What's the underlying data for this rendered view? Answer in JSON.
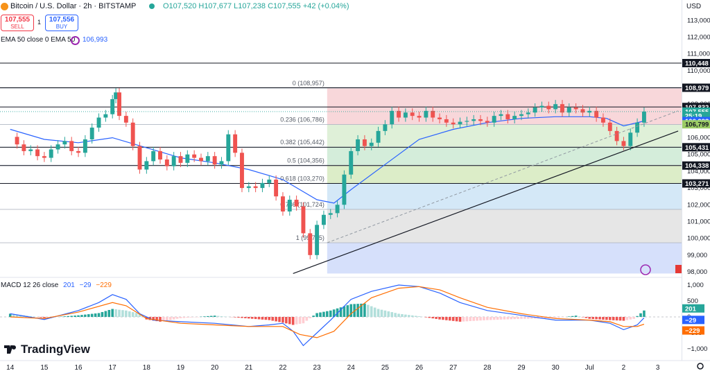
{
  "header": {
    "title": "Bitcoin / U.S. Dollar · 2h · BITSTAMP",
    "ohlc": "O107,520 H107,677 L107,238 C107,555 +42 (+0.04%)",
    "sell_price": "107,555",
    "sell_label": "SELL",
    "spread": "1",
    "buy_price": "107,556",
    "buy_label": "BUY",
    "ema_legend": "EMA 50 close 0 EMA 50",
    "ema_value": "106,993",
    "currency": "USD"
  },
  "macd_legend": {
    "label": "MACD 12 26 close",
    "v1": "201",
    "v2": "−29",
    "v3": "−229"
  },
  "colors": {
    "up": "#26a69a",
    "down": "#ef5350",
    "ema": "#2962ff",
    "macd_line": "#2962ff",
    "signal_line": "#ff6d00"
  },
  "price_axis": {
    "ticks": [
      "113,000",
      "112,000",
      "111,000",
      "110,000",
      "109,000",
      "108,000",
      "107,000",
      "106,000",
      "105,000",
      "104,000",
      "103,000",
      "102,000",
      "101,000",
      "100,000",
      "99,000",
      "98,000"
    ],
    "tick_values": [
      113000,
      112000,
      111000,
      110000,
      109000,
      108000,
      107000,
      106000,
      105000,
      104000,
      103000,
      102000,
      101000,
      100000,
      99000,
      98000
    ],
    "badges": [
      {
        "text": "110,448",
        "value": 110448,
        "bg": "#131722",
        "fg": "#ffffff"
      },
      {
        "text": "108,979",
        "value": 108979,
        "bg": "#131722",
        "fg": "#ffffff"
      },
      {
        "text": "107,832",
        "value": 107832,
        "bg": "#131722",
        "fg": "#ffffff"
      },
      {
        "text": "107,555",
        "value": 107555,
        "bg": "#26a69a",
        "fg": "#ffffff"
      },
      {
        "text": "25:19",
        "value": 107300,
        "bg": "#26a69a",
        "fg": "#ffffff"
      },
      {
        "text": "106,993",
        "value": 106993,
        "bg": "#2962ff",
        "fg": "#ffffff"
      },
      {
        "text": "106,799",
        "value": 106799,
        "bg": "#9ccc65",
        "fg": "#131722"
      },
      {
        "text": "105,431",
        "value": 105431,
        "bg": "#131722",
        "fg": "#ffffff"
      },
      {
        "text": "104,338",
        "value": 104338,
        "bg": "#131722",
        "fg": "#ffffff"
      },
      {
        "text": "103,271",
        "value": 103271,
        "bg": "#131722",
        "fg": "#ffffff"
      }
    ]
  },
  "macd_axis": {
    "ticks": [
      "1,000",
      "500",
      "0",
      "−500",
      "−1,000"
    ],
    "tick_values": [
      1000,
      500,
      0,
      -500,
      -1000
    ],
    "badges": [
      {
        "text": "201",
        "value": 201,
        "bg": "#26a69a",
        "fg": "#ffffff"
      },
      {
        "text": "−29",
        "value": -29,
        "bg": "#2962ff",
        "fg": "#ffffff"
      },
      {
        "text": "−229",
        "value": -229,
        "bg": "#ff6d00",
        "fg": "#ffffff"
      }
    ]
  },
  "time_axis": {
    "labels": [
      "14",
      "15",
      "16",
      "17",
      "18",
      "19",
      "20",
      "21",
      "22",
      "23",
      "24",
      "25",
      "26",
      "27",
      "28",
      "29",
      "30",
      "Jul",
      "2",
      "3"
    ],
    "label_positions": [
      0,
      1,
      2,
      3,
      4,
      5,
      6,
      7,
      8,
      9,
      10,
      11,
      12,
      13,
      14,
      15,
      16,
      17,
      18,
      19
    ]
  },
  "chart_data": {
    "type": "candlestick",
    "title": "Bitcoin / U.S. Dollar · 2h · BITSTAMP",
    "x_unit": "days (0 = Jun 14)",
    "horizontal_levels": [
      110448,
      108979,
      107832,
      105431,
      104338,
      103271
    ],
    "fibonacci": {
      "start_x": 9.3,
      "levels": [
        {
          "ratio": "0",
          "price": 108957,
          "label": "0 (108,957)",
          "fill": "#f8d7da"
        },
        {
          "ratio": "0.236",
          "price": 106786,
          "label": "0.236 (106,786)",
          "fill": "#dff0d8"
        },
        {
          "ratio": "0.382",
          "price": 105442,
          "label": "0.382 (105,442)",
          "fill": "#d4edda"
        },
        {
          "ratio": "0.5",
          "price": 104356,
          "label": "0.5 (104,356)",
          "fill": "#dcedc8"
        },
        {
          "ratio": "0.618",
          "price": 103270,
          "label": "0.618 (103,270)",
          "fill": "#d4e8f7"
        },
        {
          "ratio": "0.786",
          "price": 101724,
          "label": "0.786 (101,724)",
          "fill": "#e6e6e6"
        },
        {
          "ratio": "1",
          "price": 99735,
          "label": "1 (99,735)",
          "fill": "#d6e0fb"
        }
      ],
      "bottom_price": 97900
    },
    "trendline": {
      "x1": 8.3,
      "y1": 97900,
      "x2": 19.6,
      "y2": 106400
    },
    "dashed_trendline": {
      "x1": 9.3,
      "y1": 99735,
      "x2": 19.6,
      "y2": 107600
    },
    "close_points": [
      [
        0,
        106050
      ],
      [
        0.2,
        105600
      ],
      [
        0.4,
        105200
      ],
      [
        0.6,
        105300
      ],
      [
        0.8,
        104900
      ],
      [
        1,
        104800
      ],
      [
        1.2,
        105300
      ],
      [
        1.4,
        105600
      ],
      [
        1.6,
        105800
      ],
      [
        1.8,
        105200
      ],
      [
        2,
        105100
      ],
      [
        2.2,
        105900
      ],
      [
        2.4,
        106600
      ],
      [
        2.6,
        107200
      ],
      [
        2.8,
        107400
      ],
      [
        3,
        108300
      ],
      [
        3.1,
        108700
      ],
      [
        3.2,
        107300
      ],
      [
        3.4,
        106900
      ],
      [
        3.6,
        105500
      ],
      [
        3.8,
        104100
      ],
      [
        4,
        104600
      ],
      [
        4.2,
        105200
      ],
      [
        4.4,
        104700
      ],
      [
        4.6,
        104300
      ],
      [
        4.8,
        104900
      ],
      [
        5,
        104500
      ],
      [
        5.2,
        105000
      ],
      [
        5.4,
        104800
      ],
      [
        5.6,
        104600
      ],
      [
        5.8,
        104900
      ],
      [
        6,
        104400
      ],
      [
        6.2,
        104600
      ],
      [
        6.4,
        106200
      ],
      [
        6.6,
        105100
      ],
      [
        6.8,
        103000
      ],
      [
        7,
        103100
      ],
      [
        7.2,
        103000
      ],
      [
        7.4,
        103300
      ],
      [
        7.6,
        103500
      ],
      [
        7.8,
        102500
      ],
      [
        8,
        101600
      ],
      [
        8.2,
        102300
      ],
      [
        8.4,
        101900
      ],
      [
        8.6,
        100300
      ],
      [
        8.8,
        99000
      ],
      [
        9,
        100800
      ],
      [
        9.2,
        101400
      ],
      [
        9.4,
        101500
      ],
      [
        9.6,
        102000
      ],
      [
        9.8,
        103800
      ],
      [
        10,
        105200
      ],
      [
        10.2,
        105900
      ],
      [
        10.4,
        105500
      ],
      [
        10.6,
        105700
      ],
      [
        10.8,
        106400
      ],
      [
        11,
        106800
      ],
      [
        11.2,
        107600
      ],
      [
        11.4,
        107200
      ],
      [
        11.6,
        107500
      ],
      [
        11.8,
        107300
      ],
      [
        12,
        107200
      ],
      [
        12.2,
        107600
      ],
      [
        12.4,
        107200
      ],
      [
        12.6,
        107100
      ],
      [
        12.8,
        106900
      ],
      [
        13,
        106800
      ],
      [
        13.2,
        106950
      ],
      [
        13.4,
        107000
      ],
      [
        13.6,
        107100
      ],
      [
        13.8,
        107000
      ],
      [
        14,
        106900
      ],
      [
        14.2,
        107300
      ],
      [
        14.4,
        107400
      ],
      [
        14.6,
        107100
      ],
      [
        14.8,
        107300
      ],
      [
        15,
        107400
      ],
      [
        15.2,
        107500
      ],
      [
        15.4,
        107800
      ],
      [
        15.6,
        107900
      ],
      [
        15.8,
        107700
      ],
      [
        16,
        108000
      ],
      [
        16.2,
        107500
      ],
      [
        16.4,
        107800
      ],
      [
        16.6,
        107700
      ],
      [
        16.8,
        107500
      ],
      [
        17,
        107600
      ],
      [
        17.2,
        107200
      ],
      [
        17.4,
        106900
      ],
      [
        17.6,
        106400
      ],
      [
        17.8,
        105800
      ],
      [
        18,
        105500
      ],
      [
        18.2,
        106300
      ],
      [
        18.4,
        106900
      ],
      [
        18.6,
        107555
      ]
    ],
    "ema50": [
      [
        0,
        106500
      ],
      [
        1,
        105900
      ],
      [
        2,
        105700
      ],
      [
        3,
        106000
      ],
      [
        4,
        105400
      ],
      [
        5,
        104800
      ],
      [
        6,
        104500
      ],
      [
        7,
        104100
      ],
      [
        8,
        103500
      ],
      [
        9,
        102300
      ],
      [
        9.5,
        102100
      ],
      [
        10,
        102900
      ],
      [
        11,
        104400
      ],
      [
        12,
        105900
      ],
      [
        13,
        106500
      ],
      [
        14,
        106900
      ],
      [
        15,
        107150
      ],
      [
        16,
        107250
      ],
      [
        17,
        107250
      ],
      [
        17.5,
        107150
      ],
      [
        18,
        106700
      ],
      [
        18.6,
        106993
      ]
    ],
    "macd": {
      "legend": "MACD 12 26 close",
      "macd_line": [
        [
          0,
          100
        ],
        [
          1,
          -80
        ],
        [
          2,
          200
        ],
        [
          2.6,
          450
        ],
        [
          3,
          700
        ],
        [
          3.4,
          550
        ],
        [
          3.8,
          100
        ],
        [
          4.2,
          -100
        ],
        [
          5,
          -150
        ],
        [
          6,
          -200
        ],
        [
          7,
          -300
        ],
        [
          7.6,
          -250
        ],
        [
          8,
          -200
        ],
        [
          8.3,
          -450
        ],
        [
          8.6,
          -900
        ],
        [
          9,
          -500
        ],
        [
          9.4,
          -100
        ],
        [
          10,
          550
        ],
        [
          10.6,
          800
        ],
        [
          11.4,
          1000
        ],
        [
          12,
          950
        ],
        [
          12.6,
          750
        ],
        [
          13.2,
          450
        ],
        [
          14,
          200
        ],
        [
          15,
          50
        ],
        [
          16,
          -100
        ],
        [
          17,
          -100
        ],
        [
          17.6,
          -200
        ],
        [
          18,
          -400
        ],
        [
          18.4,
          -250
        ],
        [
          18.6,
          -29
        ]
      ],
      "signal_line": [
        [
          0,
          0
        ],
        [
          1,
          -50
        ],
        [
          2,
          150
        ],
        [
          3,
          450
        ],
        [
          3.4,
          350
        ],
        [
          4,
          -50
        ],
        [
          5,
          -200
        ],
        [
          6,
          -250
        ],
        [
          7,
          -300
        ],
        [
          8,
          -300
        ],
        [
          8.5,
          -550
        ],
        [
          9,
          -650
        ],
        [
          9.5,
          -450
        ],
        [
          10,
          100
        ],
        [
          10.6,
          600
        ],
        [
          11.4,
          900
        ],
        [
          12,
          950
        ],
        [
          12.6,
          850
        ],
        [
          13.2,
          600
        ],
        [
          14,
          300
        ],
        [
          15,
          100
        ],
        [
          16,
          -50
        ],
        [
          17,
          -100
        ],
        [
          17.6,
          -150
        ],
        [
          18,
          -300
        ],
        [
          18.4,
          -300
        ],
        [
          18.6,
          -229
        ]
      ],
      "histogram": [
        [
          0,
          100
        ],
        [
          1,
          -30
        ],
        [
          2,
          50
        ],
        [
          2.6,
          120
        ],
        [
          3,
          250
        ],
        [
          3.4,
          200
        ],
        [
          3.8,
          100
        ],
        [
          4,
          -80
        ],
        [
          4.4,
          -150
        ],
        [
          5,
          -40
        ],
        [
          6,
          40
        ],
        [
          7,
          -50
        ],
        [
          7.6,
          -100
        ],
        [
          8,
          -180
        ],
        [
          8.3,
          -250
        ],
        [
          8.6,
          -200
        ],
        [
          9,
          120
        ],
        [
          9.4,
          200
        ],
        [
          10,
          400
        ],
        [
          10.4,
          420
        ],
        [
          10.8,
          250
        ],
        [
          11.4,
          100
        ],
        [
          12,
          20
        ],
        [
          12.6,
          -80
        ],
        [
          13.2,
          -150
        ],
        [
          14,
          -100
        ],
        [
          15,
          -60
        ],
        [
          16,
          -40
        ],
        [
          16.6,
          40
        ],
        [
          17,
          -60
        ],
        [
          17.6,
          -100
        ],
        [
          18,
          -120
        ],
        [
          18.3,
          -60
        ],
        [
          18.6,
          201
        ]
      ]
    },
    "ylim": [
      97900,
      113800
    ],
    "macd_ylim": [
      -1100,
      1100
    ],
    "xlim": [
      -0.3,
      19.7
    ]
  }
}
